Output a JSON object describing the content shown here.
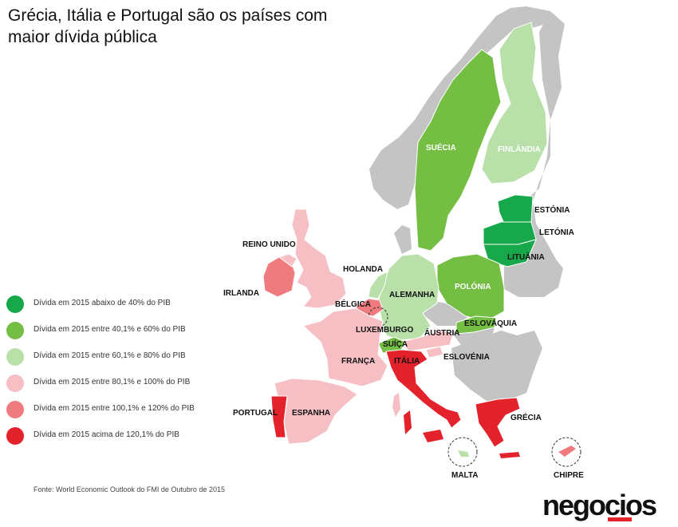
{
  "title": "Grécia, Itália e Portugal são os países com maior dívida pública",
  "legend": [
    {
      "label": "Dívida em 2015 abaixo de 40% do PIB",
      "color": "#16a84a"
    },
    {
      "label": "Dívida em 2015 entre 40,1% e 60% do PIB",
      "color": "#74be44"
    },
    {
      "label": "Dívida em 2015 entre 60,1% e 80% do PIB",
      "color": "#b8e0a8"
    },
    {
      "label": "Dívida em 2015 entre 80,1% e 100% do PIB",
      "color": "#f6bfc3"
    },
    {
      "label": "Dívida em 2015 entre 100,1% e 120% do PIB",
      "color": "#ef7b7e"
    },
    {
      "label": "Dívida em 2015 acima de 120,1% do PIB",
      "color": "#e3222b"
    }
  ],
  "source": "Fonte: World Economic Outlook do FMI de Outubro de 2015",
  "brand": "negocios",
  "countries": {
    "suecia": "SUÉCIA",
    "finlandia": "FINLÂNDIA",
    "estonia": "ESTÓNIA",
    "letonia": "LETÓNIA",
    "lituania": "LITUÂNIA",
    "reino_unido": "REINO UNIDO",
    "irlanda": "IRLANDA",
    "holanda": "HOLANDA",
    "alemanha": "ALEMANHA",
    "polonia": "POLÓNIA",
    "belgica": "BÉLGICA",
    "luxemburgo": "LUXEMBURGO",
    "austria": "ÁUSTRIA",
    "eslovaquia": "ESLOVÁQUIA",
    "suica": "SUÍÇA",
    "franca": "FRANÇA",
    "italia": "ITÁLIA",
    "eslovenia": "ESLOVÉNIA",
    "portugal": "PORTUGAL",
    "espanha": "ESPANHA",
    "grecia": "GRÉCIA",
    "malta": "MALTA",
    "chipre": "CHIPRE"
  }
}
